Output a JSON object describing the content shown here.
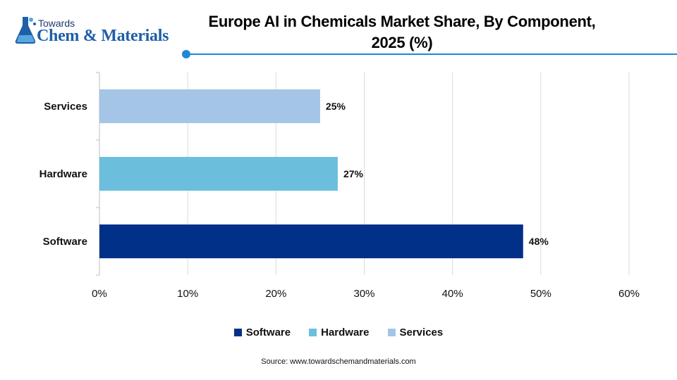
{
  "brand": {
    "line1": "Towards",
    "line2": "Chem & Materials"
  },
  "source": "Source: www.towardschemandmaterials.com",
  "colors": {
    "accent": "#1e88d6",
    "grid": "#d9d9d9"
  },
  "chart_data": {
    "type": "bar",
    "orientation": "horizontal",
    "title": "Europe AI in Chemicals Market Share, By Component, 2025 (%)",
    "categories": [
      "Services",
      "Hardware",
      "Software"
    ],
    "values": [
      25,
      27,
      48
    ],
    "data_labels": [
      "25%",
      "27%",
      "48%"
    ],
    "bar_colors": [
      "#a4c5e6",
      "#6cbfdc",
      "#003087"
    ],
    "xlim": [
      0,
      60
    ],
    "x_ticks": [
      0,
      10,
      20,
      30,
      40,
      50,
      60
    ],
    "x_tick_labels": [
      "0%",
      "10%",
      "20%",
      "30%",
      "40%",
      "50%",
      "60%"
    ],
    "grid": true,
    "legend": [
      {
        "label": "Software",
        "color": "#003087"
      },
      {
        "label": "Hardware",
        "color": "#6cbfdc"
      },
      {
        "label": "Services",
        "color": "#a4c5e6"
      }
    ],
    "legend_position": "bottom"
  }
}
